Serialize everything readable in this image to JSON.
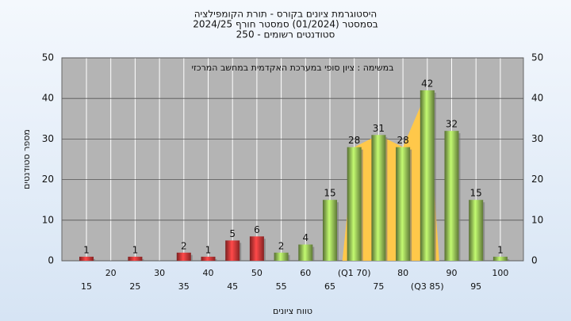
{
  "chart_data": {
    "type": "bar",
    "title": [
      "היסטוגרמת ציונים בקורס - תורת הקומפילציה",
      "בסמסטר  (01/2024)  סמסטר חורף  2024/25",
      "סטודנטים רשומים - 250"
    ],
    "annotation": "במשימה : ציון סופי במערכת האקדמית במחשב המרכזי",
    "x_label": "טווח ציונים",
    "y_label": "מספר סטודנטים",
    "categories": [
      "15",
      "20",
      "25",
      "30",
      "35",
      "40",
      "45",
      "50",
      "55",
      "60",
      "65",
      "(Q1 70)",
      "75",
      "80",
      "(Q3 85)",
      "90",
      "95",
      "100"
    ],
    "values": [
      1,
      0,
      1,
      0,
      2,
      1,
      5,
      6,
      2,
      4,
      15,
      28,
      31,
      28,
      42,
      32,
      15,
      1
    ],
    "colors": [
      "#e03a3a",
      "#e03a3a",
      "#e03a3a",
      "#e03a3a",
      "#e03a3a",
      "#e03a3a",
      "#e03a3a",
      "#e03a3a",
      "#9cc85a",
      "#9cc85a",
      "#9cc85a",
      "#9cc85a",
      "#9cc85a",
      "#9cc85a",
      "#9cc85a",
      "#9cc85a",
      "#9cc85a",
      "#9cc85a"
    ],
    "iqr_color": "#ffc84a",
    "ylim": [
      0,
      50
    ],
    "yticks": [
      0,
      10,
      20,
      30,
      40,
      50
    ],
    "grid": true
  }
}
